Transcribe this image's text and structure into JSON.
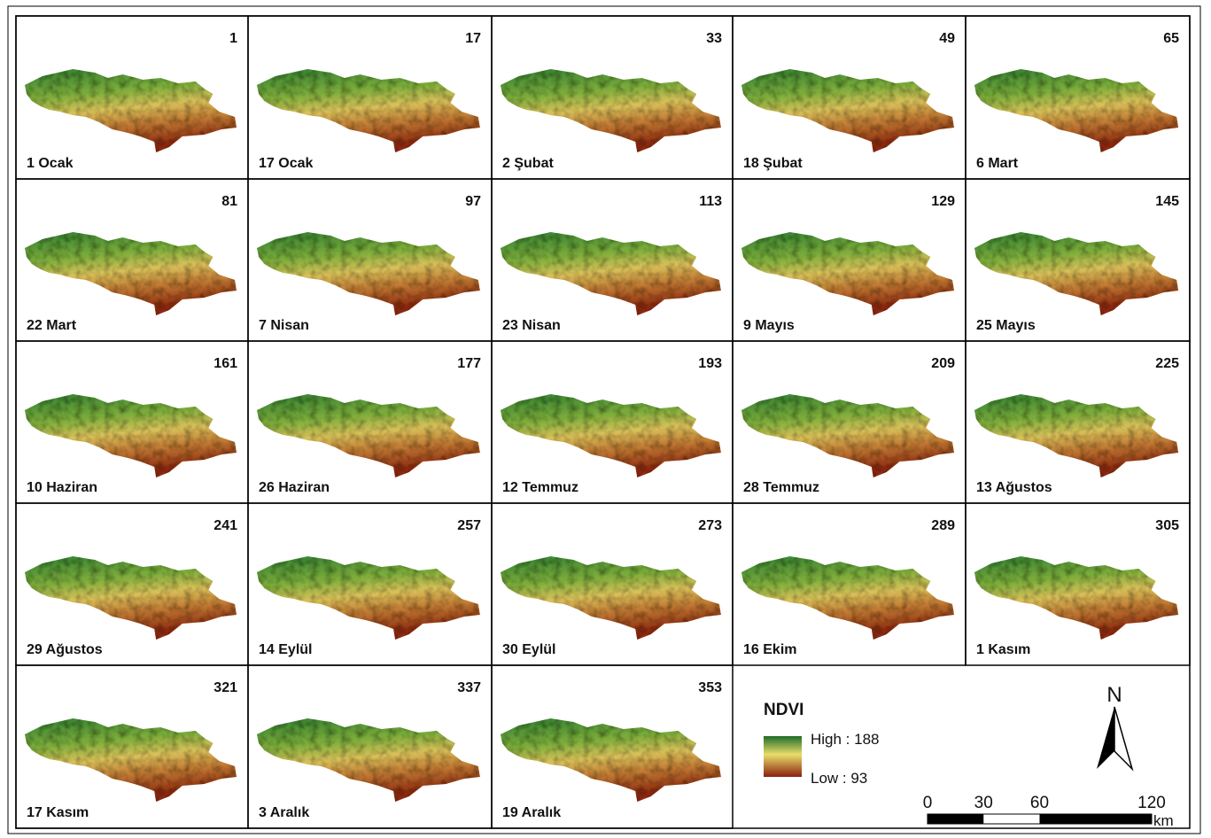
{
  "panels": [
    {
      "day": 1,
      "label": "1 Ocak"
    },
    {
      "day": 17,
      "label": "17 Ocak"
    },
    {
      "day": 33,
      "label": "2 Şubat"
    },
    {
      "day": 49,
      "label": "18 Şubat"
    },
    {
      "day": 65,
      "label": "6 Mart"
    },
    {
      "day": 81,
      "label": "22 Mart"
    },
    {
      "day": 97,
      "label": "7 Nisan"
    },
    {
      "day": 113,
      "label": "23 Nisan"
    },
    {
      "day": 129,
      "label": "9 Mayıs"
    },
    {
      "day": 145,
      "label": "25 Mayıs"
    },
    {
      "day": 161,
      "label": "10 Haziran"
    },
    {
      "day": 177,
      "label": "26 Haziran"
    },
    {
      "day": 193,
      "label": "12 Temmuz"
    },
    {
      "day": 209,
      "label": "28 Temmuz"
    },
    {
      "day": 225,
      "label": "13 Ağustos"
    },
    {
      "day": 241,
      "label": "29 Ağustos"
    },
    {
      "day": 257,
      "label": "14 Eylül"
    },
    {
      "day": 273,
      "label": "30 Eylül"
    },
    {
      "day": 289,
      "label": "16 Ekim"
    },
    {
      "day": 305,
      "label": "1 Kasım"
    },
    {
      "day": 321,
      "label": "17 Kasım"
    },
    {
      "day": 337,
      "label": "3 Aralık"
    },
    {
      "day": 353,
      "label": "19 Aralık"
    }
  ],
  "legend": {
    "title": "NDVI",
    "high": "High : 188",
    "low": "Low : 93"
  },
  "north": "N",
  "scale_bar": {
    "ticks": [
      0,
      30,
      60,
      120
    ],
    "unit": "km"
  }
}
